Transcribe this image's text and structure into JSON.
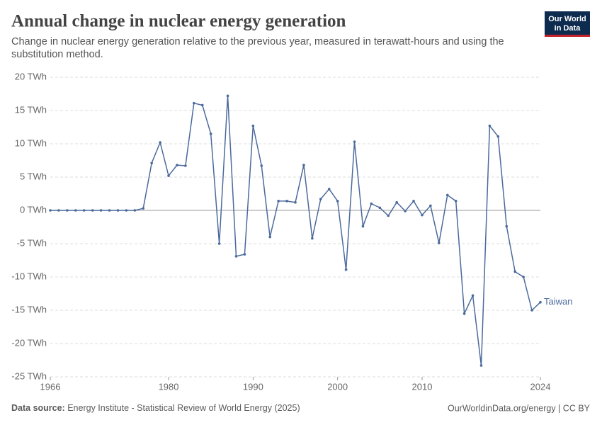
{
  "chart_data": {
    "type": "line",
    "title": "Annual change in nuclear energy generation",
    "subtitle": "Change in nuclear energy generation relative to the previous year, measured in terawatt-hours and using the substitution method.",
    "logo": [
      "Our World",
      "in Data"
    ],
    "source_label": "Data source:",
    "source": "Energy Institute - Statistical Review of World Energy (2025)",
    "credit": "OurWorldinData.org/energy | CC BY",
    "x": [
      1966,
      1967,
      1968,
      1969,
      1970,
      1971,
      1972,
      1973,
      1974,
      1975,
      1976,
      1977,
      1978,
      1979,
      1980,
      1981,
      1982,
      1983,
      1984,
      1985,
      1986,
      1987,
      1988,
      1989,
      1990,
      1991,
      1992,
      1993,
      1994,
      1995,
      1996,
      1997,
      1998,
      1999,
      2000,
      2001,
      2002,
      2003,
      2004,
      2005,
      2006,
      2007,
      2008,
      2009,
      2010,
      2011,
      2012,
      2013,
      2014,
      2015,
      2016,
      2017,
      2018,
      2019,
      2020,
      2021,
      2022,
      2023,
      2024
    ],
    "series": [
      {
        "name": "Taiwan",
        "color": "#4c6a9c",
        "values": [
          0,
          0,
          0,
          0,
          0,
          0,
          0,
          0,
          0,
          0,
          0,
          0.3,
          7.1,
          10.2,
          5.2,
          6.8,
          6.7,
          16.1,
          15.8,
          11.5,
          -5.0,
          17.2,
          -6.9,
          -6.6,
          12.7,
          6.7,
          -4.0,
          1.4,
          1.4,
          1.2,
          6.8,
          -4.2,
          1.7,
          3.2,
          1.4,
          -8.9,
          10.3,
          -2.4,
          1.0,
          0.4,
          -0.8,
          1.2,
          -0.1,
          1.4,
          -0.7,
          0.7,
          -4.9,
          2.3,
          1.4,
          -15.5,
          -12.8,
          -23.3,
          12.7,
          11.1,
          -2.4,
          -9.2,
          -10.0,
          -15.0,
          -13.8
        ]
      }
    ],
    "xlim": [
      1966,
      2024
    ],
    "xticks": [
      1966,
      1980,
      1990,
      2000,
      2010,
      2024
    ],
    "ylim": [
      -25,
      20
    ],
    "yticks": [
      {
        "value": -25,
        "label": "-25 TWh"
      },
      {
        "value": -20,
        "label": "-20 TWh"
      },
      {
        "value": -15,
        "label": "-15 TWh"
      },
      {
        "value": -10,
        "label": "-10 TWh"
      },
      {
        "value": -5,
        "label": "-5 TWh"
      },
      {
        "value": 0,
        "label": "0 TWh"
      },
      {
        "value": 5,
        "label": "5 TWh"
      },
      {
        "value": 10,
        "label": "10 TWh"
      },
      {
        "value": 15,
        "label": "15 TWh"
      },
      {
        "value": 20,
        "label": "20 TWh"
      }
    ],
    "grid": true
  }
}
